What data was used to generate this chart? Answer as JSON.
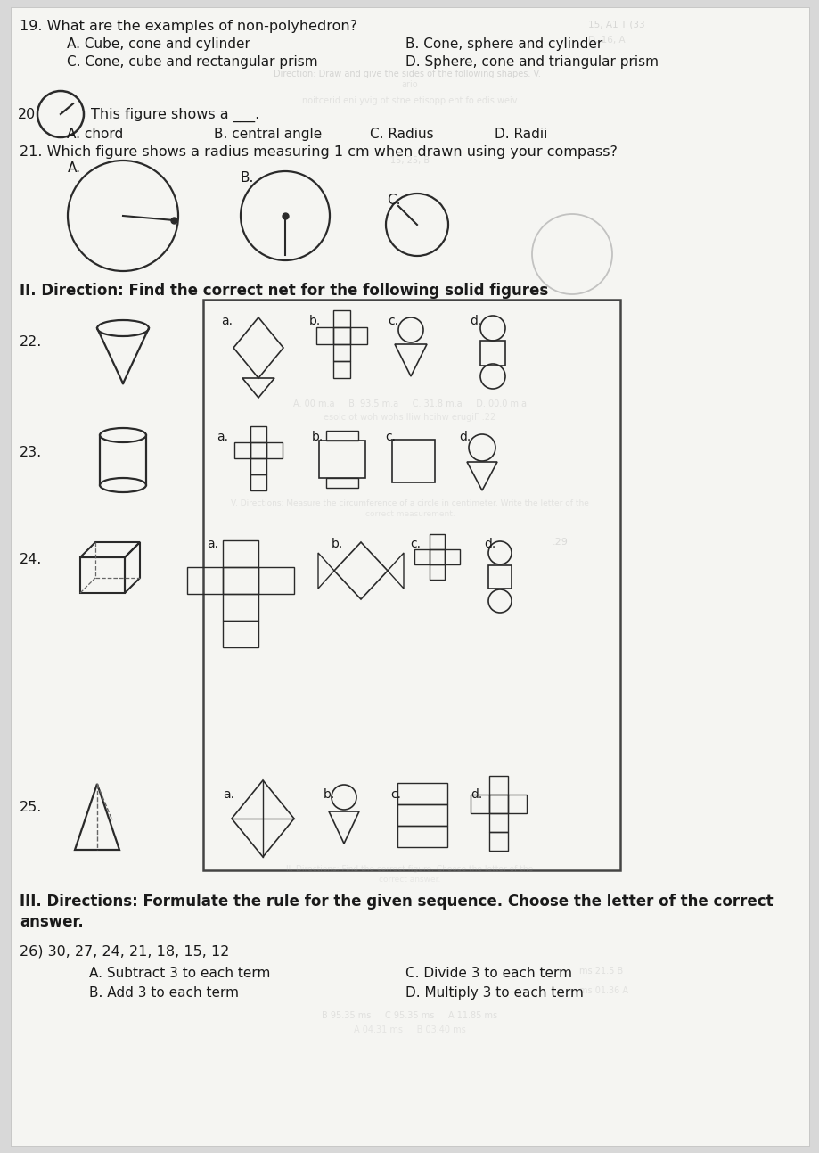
{
  "bg_color": "#d8d8d8",
  "page_bg": "#f0f0f0",
  "text_color": "#1a1a1a",
  "q19_text": "19. What are the examples of non-polyhedron?",
  "q19_A": "A. Cube, cone and cylinder",
  "q19_B": "B. Cone, sphere and cylinder",
  "q19_C": "C. Cone, cube and rectangular prism",
  "q19_D": "D. Sphere, cone and triangular prism",
  "q20_num": "20.",
  "q20_label": "This figure shows a ___.",
  "q20_A": "A. chord",
  "q20_B": "B. central angle",
  "q20_C": "C. Radius",
  "q20_D": "D. Radii",
  "q21_text": "21. Which figure shows a radius measuring 1 cm when drawn using your compass?",
  "sec2_title": "II. Direction: Find the correct net for the following solid figures",
  "sec3_title": "III. Directions: Formulate the rule for the given sequence. Choose the letter of the correct",
  "sec3_title2": "answer.",
  "q26_text": "26) 30, 27, 24, 21, 18, 15, 12",
  "q26_A": "A. Subtract 3 to each term",
  "q26_B": "B. Add 3 to each term",
  "q26_C": "C. Divide 3 to each term",
  "q26_D": "D. Multiply 3 to each term"
}
